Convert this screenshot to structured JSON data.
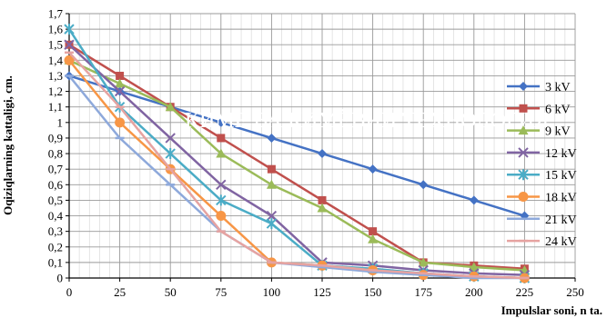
{
  "chart_data": {
    "type": "line",
    "title": "",
    "xlabel": "Impulslar soni, n ta.",
    "ylabel": "Oqiziqlarning kattaligi,  cm.",
    "xlim": [
      0,
      250
    ],
    "ylim": [
      0,
      1.7
    ],
    "x_ticks": [
      "0",
      "25",
      "50",
      "75",
      "100",
      "125",
      "150",
      "175",
      "200",
      "225",
      "250"
    ],
    "y_ticks": [
      "0",
      "0,1",
      "0,2",
      "0,3",
      "0,4",
      "0,5",
      "0,6",
      "0,7",
      "0,8",
      "0,9",
      "1",
      "1,1",
      "1,2",
      "1,3",
      "1,4",
      "1,5",
      "1,6",
      "1,7"
    ],
    "grid": true,
    "legend_position": "right",
    "overlay_text": "КИМЁ ВА КИМЁВИЙ ТЕХНОЛОГИЯ",
    "series": [
      {
        "name": "3 kV",
        "color": "#4472C4",
        "marker": "diamond",
        "x": [
          0,
          25,
          50,
          75,
          100,
          125,
          150,
          175,
          200,
          225
        ],
        "y": [
          1.3,
          1.2,
          1.1,
          1.0,
          0.9,
          0.8,
          0.7,
          0.6,
          0.5,
          0.4
        ]
      },
      {
        "name": "6 kV",
        "color": "#C0504D",
        "marker": "square",
        "x": [
          0,
          25,
          50,
          75,
          100,
          125,
          150,
          175,
          200,
          225
        ],
        "y": [
          1.5,
          1.3,
          1.1,
          0.9,
          0.7,
          0.5,
          0.3,
          0.1,
          0.08,
          0.06
        ]
      },
      {
        "name": "9 kV",
        "color": "#9BBB59",
        "marker": "triangle",
        "x": [
          0,
          25,
          50,
          75,
          100,
          125,
          150,
          175,
          200,
          225
        ],
        "y": [
          1.4,
          1.25,
          1.1,
          0.8,
          0.6,
          0.45,
          0.25,
          0.1,
          0.07,
          0.05
        ]
      },
      {
        "name": "12 kV",
        "color": "#8064A2",
        "marker": "x",
        "x": [
          0,
          25,
          50,
          75,
          100,
          125,
          150,
          175,
          200,
          225
        ],
        "y": [
          1.5,
          1.2,
          0.9,
          0.6,
          0.4,
          0.1,
          0.08,
          0.05,
          0.03,
          0.02
        ]
      },
      {
        "name": "15 kV",
        "color": "#4BACC6",
        "marker": "star",
        "x": [
          0,
          25,
          50,
          75,
          100,
          125,
          150,
          175,
          200,
          225
        ],
        "y": [
          1.6,
          1.1,
          0.8,
          0.5,
          0.35,
          0.08,
          0.06,
          0.03,
          0.01,
          0.0
        ]
      },
      {
        "name": "18 kV",
        "color": "#F79646",
        "marker": "circle",
        "x": [
          0,
          25,
          50,
          75,
          100,
          125,
          150,
          175,
          200,
          225
        ],
        "y": [
          1.4,
          1.0,
          0.7,
          0.4,
          0.1,
          0.08,
          0.05,
          0.02,
          0.01,
          0.0
        ]
      },
      {
        "name": "21 kV",
        "color": "#8EA9DB",
        "marker": "dash",
        "x": [
          0,
          25,
          50,
          75,
          100,
          125,
          150,
          175,
          200,
          225
        ],
        "y": [
          1.3,
          0.9,
          0.6,
          0.3,
          0.1,
          0.07,
          0.04,
          0.02,
          0.0,
          0.0
        ]
      },
      {
        "name": "24 kV",
        "color": "#E6A3A1",
        "marker": "dash",
        "x": [
          0,
          25,
          50,
          75,
          100,
          125,
          150,
          175,
          200,
          225
        ],
        "y": [
          1.45,
          1.1,
          0.7,
          0.3,
          0.1,
          0.08,
          0.05,
          0.03,
          0.01,
          0.0
        ]
      }
    ]
  }
}
